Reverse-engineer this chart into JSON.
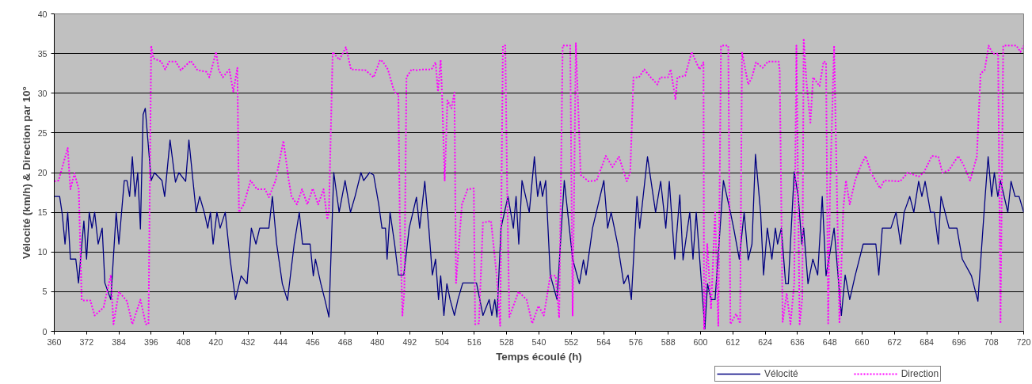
{
  "chart_data": {
    "type": "line",
    "xlabel": "Temps écoulé (h)",
    "ylabel": "Vélocité (km/h) & Direction par 10°",
    "xlim": [
      360,
      720
    ],
    "ylim": [
      0,
      40
    ],
    "xticks": [
      360,
      372,
      384,
      396,
      408,
      420,
      432,
      444,
      456,
      468,
      480,
      492,
      504,
      516,
      528,
      540,
      552,
      564,
      576,
      588,
      600,
      612,
      624,
      636,
      648,
      660,
      672,
      684,
      696,
      708,
      720
    ],
    "yticks": [
      0,
      5,
      10,
      15,
      20,
      25,
      30,
      35,
      40
    ],
    "grid": "y",
    "legend": "bottom right",
    "marker": "none",
    "series": [
      {
        "name": "Vélocité",
        "color": "#000080",
        "line_style": "solid",
        "x": [
          360,
          362,
          363,
          364,
          365,
          366,
          368,
          369,
          371,
          372,
          373,
          374,
          375,
          376.3,
          377.8,
          378.8,
          381,
          383,
          384,
          386,
          387,
          388,
          389,
          390,
          391,
          392,
          393,
          393.8,
          396,
          397.2,
          400,
          401,
          403,
          405,
          406.3,
          408.8,
          410,
          412.7,
          414,
          415.7,
          417,
          418,
          419,
          420.4,
          421.6,
          423.5,
          425.3,
          427.3,
          429.4,
          431.6,
          433.2,
          434.9,
          436.3,
          439.7,
          441,
          442.6,
          444.7,
          446.6,
          449.1,
          451,
          452.2,
          455,
          456.2,
          457,
          459,
          460.5,
          462,
          463.8,
          465.8,
          468,
          470,
          471.7,
          473.9,
          474.9,
          477.1,
          478.6,
          480.5,
          481.7,
          483,
          483.6,
          484.7,
          486.4,
          487.8,
          489.8,
          491.8,
          493.2,
          494.5,
          495.7,
          497.6,
          499.1,
          500.4,
          501.6,
          502.7,
          503.5,
          504.7,
          505.8,
          507,
          508.6,
          509.9,
          511.7,
          516.8,
          519.2,
          521.5,
          522.5,
          523.6,
          524.4,
          525.9,
          528.5,
          530.5,
          531.5,
          532.5,
          533.7,
          536.4,
          538.3,
          539.5,
          540.5,
          541.3,
          542.5,
          544.2,
          546.7,
          549.4,
          552.5,
          555,
          556.5,
          557.5,
          559.9,
          564.1,
          565.5,
          566.8,
          569.2,
          571.5,
          573.1,
          574.3,
          576.4,
          577.4,
          580.3,
          583.3,
          585.2,
          587.1,
          588.4,
          590.4,
          592.3,
          593.5,
          596,
          597.2,
          598.4,
          601.6,
          602.6,
          603.9,
          605.4,
          608.5,
          611.1,
          612.3,
          614.4,
          616.2,
          617.7,
          619.1,
          620.4,
          622.3,
          623.4,
          624.8,
          626.5,
          627.8,
          628.6,
          630,
          631.6,
          632.6,
          634.8,
          636.3,
          637.6,
          638.3,
          639.9,
          641.7,
          643.5,
          645.2,
          646.6,
          649.6,
          652.3,
          653.7,
          655.4,
          657.4,
          660.4,
          665.1,
          666.2,
          667.5,
          670.7,
          672.6,
          674.3,
          675.6,
          677.7,
          679.2,
          681,
          682.2,
          683.4,
          685.4,
          686.8,
          688.3,
          689.3,
          690.8,
          692.3,
          695.2,
          697.2,
          700.6,
          703,
          705.7,
          706.8,
          708.1,
          709.1,
          710.4,
          711.4,
          714.1,
          715.3,
          716.8,
          718.3,
          720
        ],
        "values": [
          17,
          17,
          14.7,
          11,
          15,
          9.1,
          9.1,
          6.1,
          13.9,
          9.1,
          15,
          13,
          15,
          11,
          13,
          6.1,
          4,
          15,
          11,
          19,
          19,
          17,
          22,
          17,
          20,
          12.9,
          27.3,
          28.1,
          19,
          20,
          19,
          17,
          24.1,
          18.8,
          20,
          18.9,
          24.1,
          15,
          17,
          15,
          13,
          15,
          11,
          15,
          13,
          15,
          9.1,
          4,
          7,
          6,
          13,
          11,
          13,
          13,
          17,
          11,
          6,
          3.9,
          11,
          15,
          11,
          11,
          7,
          9.1,
          6,
          4,
          1.8,
          20,
          15,
          19,
          15,
          17,
          20,
          19,
          20,
          19.7,
          16,
          13,
          13,
          9.1,
          15,
          11,
          7.1,
          7.1,
          13,
          15,
          16.9,
          13,
          18.9,
          13,
          7.1,
          9.1,
          4,
          7,
          2,
          6,
          4,
          2,
          4,
          6.1,
          6.1,
          2,
          4,
          2,
          4,
          1.8,
          13,
          17,
          13,
          17,
          11,
          19,
          15,
          22,
          17,
          18.9,
          17,
          19,
          7.1,
          4,
          19,
          9.1,
          6,
          9,
          7.1,
          13,
          19,
          13,
          15,
          11,
          6,
          7.1,
          4,
          17,
          13,
          22,
          15,
          18.9,
          13,
          18.9,
          9.1,
          17.2,
          9,
          15,
          9.1,
          15,
          0.3,
          6,
          4,
          4,
          19,
          15,
          13,
          9.1,
          15,
          9,
          11,
          22.3,
          15,
          7.1,
          13,
          9.1,
          13,
          11,
          13,
          6,
          6,
          20.1,
          16.9,
          11,
          13,
          6,
          9.1,
          7.1,
          17,
          7,
          13,
          2,
          7.1,
          4,
          7,
          11,
          11,
          7.1,
          13,
          13,
          15,
          11,
          15,
          17,
          15,
          18.9,
          17,
          18.9,
          15,
          15,
          11,
          17,
          15,
          13,
          13,
          9.1,
          7,
          3.8,
          17,
          22,
          17,
          20,
          17,
          19,
          15,
          18.9,
          17,
          17,
          15
        ]
      },
      {
        "name": "Direction",
        "color": "#ff00ff",
        "line_style": "dotted",
        "x": [
          360,
          361.6,
          365,
          366,
          367.5,
          369.1,
          370.2,
          373.4,
          375,
          378.3,
          381,
          382,
          384,
          387,
          389,
          392,
          394,
          395,
          396,
          396.8,
          399.7,
          401.2,
          402.7,
          405.1,
          407,
          410.7,
          413.2,
          416.6,
          417.6,
          420.1,
          421.1,
          422.6,
          425,
          426.5,
          428,
          428.6,
          430.4,
          432.9,
          435.3,
          438.3,
          439.7,
          442.2,
          445.1,
          447.1,
          448.1,
          450.1,
          452,
          454,
          456,
          458,
          460,
          461.4,
          462,
          463.4,
          465.9,
          468.3,
          470.2,
          475.6,
          478.6,
          481,
          482,
          483.9,
          485.9,
          486.9,
          487.8,
          488.3,
          489.3,
          490,
          490.8,
          492.7,
          494.7,
          496.7,
          500.1,
          501.6,
          502.5,
          503.5,
          504,
          505,
          506,
          507.5,
          508.6,
          509.2,
          511.4,
          513.5,
          515.8,
          516.3,
          517.7,
          519.2,
          522.2,
          524.3,
          525.6,
          526.6,
          527.5,
          528.2,
          529,
          532.4,
          535.4,
          537.5,
          539.8,
          541.8,
          544.2,
          546.2,
          547.5,
          548.8,
          551.6,
          552.5,
          553.7,
          555.5,
          558.4,
          561.4,
          564.8,
          567.3,
          569.7,
          572.6,
          573.9,
          575.1,
          577.1,
          579.1,
          581.5,
          584,
          585,
          587.9,
          588.9,
          590.7,
          591.4,
          594.3,
          596.7,
          599.6,
          601.1,
          601.3,
          602.5,
          603.9,
          605.4,
          606.6,
          607.6,
          610.3,
          611.1,
          613.2,
          614.7,
          615.4,
          617.7,
          619.1,
          620.6,
          623.1,
          625,
          629,
          629.4,
          630.5,
          632,
          633.4,
          634.8,
          635.6,
          636.8,
          637.8,
          638.3,
          639.3,
          640.8,
          641.8,
          644.2,
          645.7,
          646.6,
          647.4,
          648.1,
          649.6,
          651.6,
          653,
          654,
          655.4,
          657.4,
          659.4,
          661.3,
          663.3,
          666.7,
          668.2,
          674.1,
          677,
          681,
          682.9,
          685.9,
          688.3,
          689.8,
          692.2,
          695.7,
          697.6,
          700.1,
          702.6,
          704,
          705.5,
          707,
          708.5,
          710.5,
          711.4,
          712.4,
          717.3,
          718.8,
          720
        ],
        "values": [
          18.9,
          19,
          23.1,
          17.9,
          19.9,
          17.9,
          3.9,
          3.9,
          2,
          3,
          7.1,
          0.9,
          5,
          3.8,
          0.9,
          4,
          0.9,
          0.9,
          36,
          34.4,
          34,
          33,
          34,
          34,
          32.9,
          34.1,
          32.9,
          32.7,
          32,
          35.2,
          32.9,
          32,
          33,
          30.2,
          33.2,
          15,
          16,
          19,
          17.9,
          17.9,
          16.9,
          19,
          24,
          19,
          17,
          16,
          17.9,
          16,
          18,
          16,
          17.9,
          14.1,
          15,
          35.2,
          34.2,
          35.8,
          33,
          32.9,
          32,
          34.2,
          34,
          33,
          30.6,
          29.9,
          29.9,
          14.7,
          2,
          5.1,
          32,
          33,
          32.9,
          33,
          33,
          33.9,
          30.2,
          34.2,
          29.9,
          19,
          29.1,
          28.1,
          30.1,
          6.1,
          16,
          17.9,
          18,
          0.9,
          1,
          13.7,
          13.9,
          7,
          0.7,
          36,
          36,
          17.7,
          1.8,
          5,
          4,
          1,
          3.2,
          2,
          7,
          7,
          1.7,
          36,
          36,
          2,
          36.3,
          19.7,
          18.9,
          19,
          22.1,
          20.7,
          22,
          18.9,
          20,
          32,
          32,
          33,
          32,
          31.1,
          32,
          32,
          33,
          29.2,
          32,
          32.2,
          35.2,
          33,
          33.9,
          0.2,
          11,
          2.8,
          15,
          0.7,
          36,
          36,
          0.9,
          2.2,
          1,
          35.2,
          31.1,
          32,
          33.9,
          33.2,
          34,
          34,
          32.9,
          1.2,
          4.8,
          0.9,
          6.1,
          36,
          0.9,
          4.2,
          36.9,
          31.6,
          26.3,
          32,
          30.9,
          34,
          33.9,
          1,
          18,
          36,
          1,
          15.4,
          19,
          16,
          19,
          20.8,
          22.1,
          20,
          18,
          19,
          18.9,
          20,
          19.5,
          20,
          22.1,
          22,
          20,
          20.3,
          22.1,
          21,
          19,
          22,
          32.5,
          32.9,
          36,
          35,
          35,
          1,
          36,
          36,
          35.2,
          36
        ]
      }
    ]
  }
}
